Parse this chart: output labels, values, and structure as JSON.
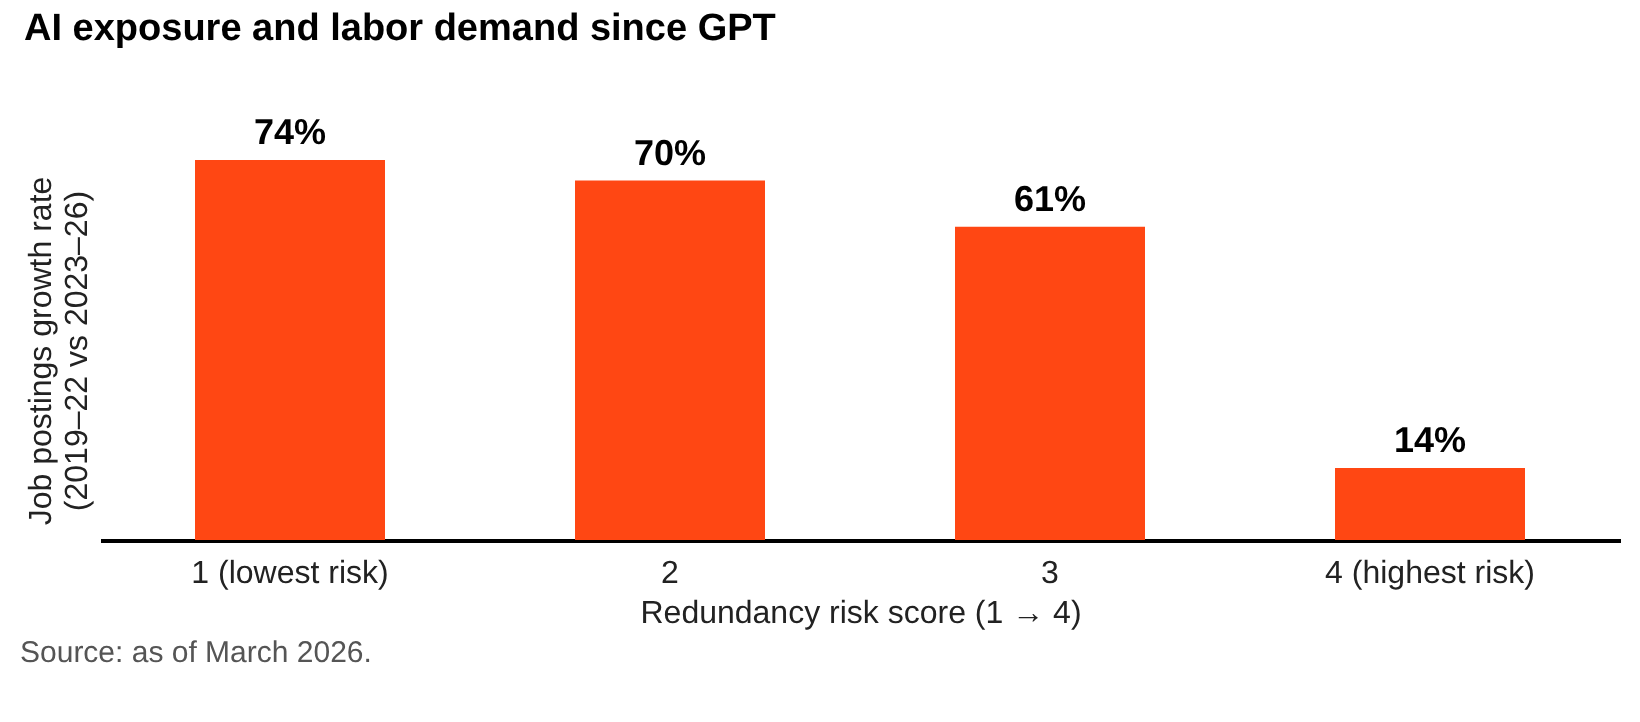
{
  "chart_data": {
    "type": "bar",
    "title": "AI exposure and labor demand since GPT",
    "categories": [
      "1 (lowest risk)",
      "2",
      "3",
      "4 (highest risk)"
    ],
    "values": [
      74,
      70,
      61,
      14
    ],
    "value_labels": [
      "74%",
      "70%",
      "61%",
      "14%"
    ],
    "color": "#ff4713",
    "xlabel": "Redundancy risk score (1 → 4)",
    "ylabel": "Job postings growth rate\n(2019–22 vs 2023–26)",
    "grid": false,
    "annotations": [
      "Source: as of March 2026."
    ]
  }
}
